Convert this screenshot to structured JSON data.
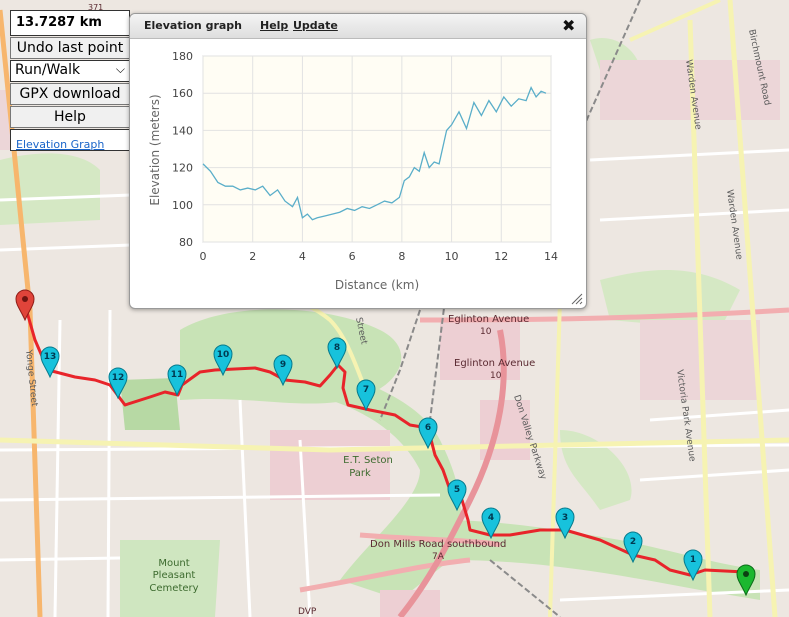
{
  "panel": {
    "distance": "13.7287 km",
    "undo_label": "Undo last point",
    "mode_selected": "Run/Walk",
    "gpx_label": "GPX download",
    "help_label": "Help",
    "elevation_link": "Elevation Graph"
  },
  "elevation_window": {
    "title": "Elevation graph",
    "help_link": "Help",
    "update_link": "Update",
    "close_icon": "close-icon"
  },
  "chart_data": {
    "type": "line",
    "xlabel": "Distance (km)",
    "ylabel": "Elevation (meters)",
    "xlim": [
      0,
      14
    ],
    "ylim": [
      80,
      180
    ],
    "xticks": [
      "0",
      "2",
      "4",
      "6",
      "8",
      "10",
      "12",
      "14"
    ],
    "yticks": [
      "80",
      "100",
      "120",
      "140",
      "160",
      "180"
    ],
    "grid": true,
    "series": [
      {
        "color": "#5aaec9",
        "x": [
          0,
          0.3,
          0.6,
          0.9,
          1.2,
          1.5,
          1.8,
          2.1,
          2.4,
          2.7,
          3.0,
          3.3,
          3.6,
          3.8,
          4.0,
          4.2,
          4.4,
          4.6,
          4.9,
          5.2,
          5.5,
          5.8,
          6.1,
          6.4,
          6.7,
          7.0,
          7.3,
          7.6,
          7.9,
          8.1,
          8.3,
          8.5,
          8.7,
          8.9,
          9.1,
          9.3,
          9.5,
          9.8,
          10.0,
          10.3,
          10.6,
          10.9,
          11.2,
          11.5,
          11.8,
          12.1,
          12.4,
          12.7,
          13.0,
          13.2,
          13.4,
          13.6,
          13.8
        ],
        "y": [
          122,
          118,
          112,
          110,
          110,
          108,
          109,
          108,
          110,
          105,
          108,
          102,
          99,
          104,
          93,
          95,
          92,
          93,
          94,
          95,
          96,
          98,
          97,
          99,
          98,
          100,
          102,
          101,
          104,
          113,
          115,
          120,
          118,
          128,
          120,
          123,
          122,
          140,
          143,
          150,
          141,
          155,
          148,
          156,
          150,
          158,
          153,
          157,
          156,
          163,
          158,
          161,
          160
        ]
      }
    ]
  },
  "map": {
    "labels": {
      "eglinton_1": "Eglinton Avenue",
      "eglinton_1_num": "10",
      "eglinton_2": "Eglinton Avenue",
      "eglinton_2_num": "10",
      "don_mills": "Don Mills Road southbound",
      "don_mills_num": "7A",
      "don_valley": "Don Valley Parkway",
      "seton": "E.T. Seton",
      "seton_park": "Park",
      "mount_pleasant": "Mount",
      "mount_pleasant_2": "Pleasant",
      "cemetery": "Cemetery",
      "victoria_park": "Victoria Park Avenue",
      "warden": "Warden Avenue",
      "warden_2": "Warden Avenue",
      "birchmount": "Birchmount Road",
      "yonge": "Yonge Street",
      "leslie": "Street",
      "dvp": "DVP",
      "hwy": "371"
    },
    "markers": [
      "1",
      "2",
      "3",
      "4",
      "5",
      "6",
      "7",
      "8",
      "9",
      "10",
      "11",
      "12",
      "13"
    ],
    "route_color": "#e8242a",
    "marker_color": "#17c2dc",
    "start_color": "#1bb82f",
    "end_color": "#e0443a"
  }
}
